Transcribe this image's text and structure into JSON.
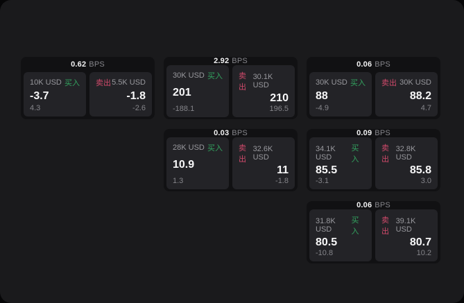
{
  "labels": {
    "unit": "BPS",
    "buy": "买入",
    "sell": "卖出"
  },
  "colors": {
    "panel_bg": "#1a1a1c",
    "card_bg": "#111113",
    "tile_bg": "#232327",
    "buy_green": "#33a35f",
    "sell_red": "#d04a6b",
    "text_primary": "#f7f7f8",
    "text_secondary": "#98989d"
  },
  "cards": [
    {
      "bps": "0.62",
      "buy": {
        "size": "10K USD",
        "price": "-3.7",
        "change": "4.3"
      },
      "sell": {
        "size": "5.5K USD",
        "price": "-1.8",
        "change": "-2.6"
      }
    },
    {
      "bps": "2.92",
      "buy": {
        "size": "30K USD",
        "price": "201",
        "change": "-188.1"
      },
      "sell": {
        "size": "30.1K USD",
        "price": "210",
        "change": "196.5"
      }
    },
    {
      "bps": "0.06",
      "buy": {
        "size": "30K USD",
        "price": "88",
        "change": "-4.9"
      },
      "sell": {
        "size": "30K USD",
        "price": "88.2",
        "change": "4.7"
      }
    },
    {
      "bps": "0.03",
      "buy": {
        "size": "28K USD",
        "price": "10.9",
        "change": "1.3"
      },
      "sell": {
        "size": "32.6K USD",
        "price": "11",
        "change": "-1.8"
      }
    },
    {
      "bps": "0.09",
      "buy": {
        "size": "34.1K USD",
        "price": "85.5",
        "change": "-3.1"
      },
      "sell": {
        "size": "32.8K USD",
        "price": "85.8",
        "change": "3.0"
      }
    },
    {
      "bps": "0.06",
      "buy": {
        "size": "31.8K USD",
        "price": "80.5",
        "change": "-10.8"
      },
      "sell": {
        "size": "39.1K USD",
        "price": "80.7",
        "change": "10.2"
      }
    }
  ]
}
